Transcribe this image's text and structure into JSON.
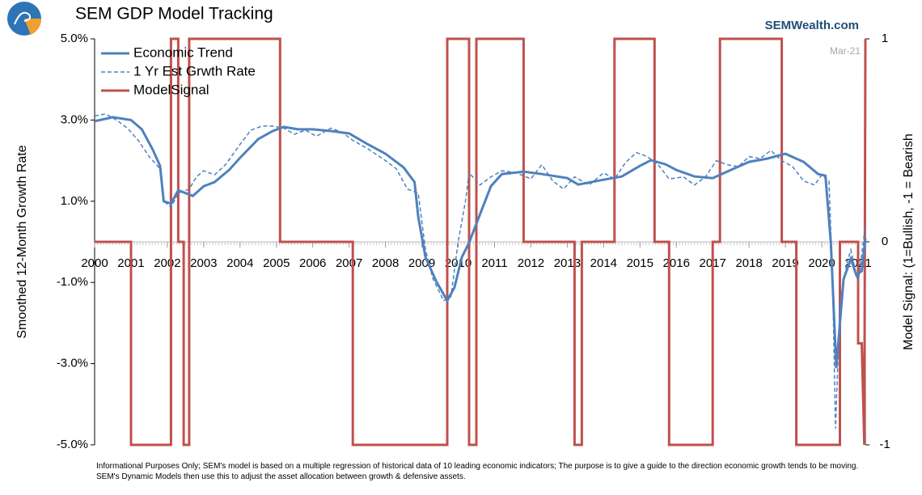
{
  "chart_data": {
    "type": "line",
    "title": "SEM GDP Model Tracking",
    "brand": "SEMWealth.com",
    "date_label": "Mar-21",
    "ylabel": "Smoothed 12-Month Growth Rate",
    "y2label": "Model Signal: (1=Bullish, -1 = Bearish",
    "note": "Informational Purposes Only; SEM's model is based on a multiple regression of historical data of 10 leading economic indicators; The purpose is to give a guide to the direction economic growth tends to be moving. SEM's Dynamic Models then use this to adjust the asset allocation between growth & defensive assets.",
    "xlim": [
      2000,
      2021.2
    ],
    "xticks": [
      2000,
      2001,
      2002,
      2003,
      2004,
      2005,
      2006,
      2007,
      2008,
      2009,
      2010,
      2011,
      2012,
      2013,
      2014,
      2015,
      2016,
      2017,
      2018,
      2019,
      2020,
      2021
    ],
    "ylim": [
      -5,
      5
    ],
    "yticks": [
      {
        "value": 5,
        "label": "5.0%"
      },
      {
        "value": 3,
        "label": "3.0%"
      },
      {
        "value": 1,
        "label": "1.0%"
      },
      {
        "value": -1,
        "label": "-1.0%"
      },
      {
        "value": -3,
        "label": "-3.0%"
      },
      {
        "value": -5,
        "label": "-5.0%"
      }
    ],
    "y2lim": [
      -1,
      1
    ],
    "y2ticks": [
      1,
      0,
      -1
    ],
    "legend": "upper left",
    "series": [
      {
        "name": "Economic Trend",
        "color": "#4f81bd",
        "style": "solid",
        "x": [
          2000.0,
          2000.5,
          2001.0,
          2001.3,
          2001.6,
          2001.8,
          2001.9,
          2002.1,
          2002.3,
          2002.7,
          2003.0,
          2003.3,
          2003.7,
          2004.0,
          2004.5,
          2004.9,
          2005.2,
          2005.6,
          2006.0,
          2006.5,
          2007.0,
          2007.5,
          2008.0,
          2008.5,
          2008.8,
          2008.9,
          2009.1,
          2009.4,
          2009.7,
          2009.9,
          2010.1,
          2010.3,
          2010.6,
          2010.9,
          2011.2,
          2011.8,
          2012.3,
          2013.0,
          2013.3,
          2014.0,
          2014.5,
          2015.0,
          2015.3,
          2015.7,
          2016.0,
          2016.5,
          2017.0,
          2017.5,
          2018.0,
          2018.5,
          2019.0,
          2019.5,
          2019.9,
          2020.1,
          2020.25,
          2020.4,
          2020.6,
          2020.8,
          2020.95,
          2021.1,
          2021.2
        ],
        "values": [
          2.97,
          3.07,
          3.0,
          2.77,
          2.27,
          1.87,
          1.0,
          0.94,
          1.27,
          1.13,
          1.37,
          1.47,
          1.77,
          2.07,
          2.53,
          2.73,
          2.83,
          2.77,
          2.77,
          2.73,
          2.67,
          2.41,
          2.17,
          1.83,
          1.47,
          0.62,
          -0.38,
          -0.98,
          -1.45,
          -1.12,
          -0.38,
          -0.02,
          0.68,
          1.37,
          1.67,
          1.73,
          1.67,
          1.57,
          1.41,
          1.53,
          1.61,
          1.87,
          2.01,
          1.91,
          1.77,
          1.61,
          1.57,
          1.77,
          1.97,
          2.05,
          2.17,
          1.97,
          1.67,
          1.63,
          -0.02,
          -3.11,
          -0.92,
          -0.42,
          -0.82,
          -0.72,
          0.08
        ]
      },
      {
        "name": "1 Yr Est Grwth Rate",
        "color": "#4f81bd",
        "style": "dashed",
        "x": [
          2000.0,
          2000.3,
          2000.6,
          2000.9,
          2001.2,
          2001.5,
          2001.8,
          2001.9,
          2002.1,
          2002.3,
          2002.6,
          2002.8,
          2003.0,
          2003.3,
          2003.6,
          2004.0,
          2004.3,
          2004.6,
          2004.9,
          2005.2,
          2005.5,
          2005.8,
          2006.1,
          2006.5,
          2006.8,
          2007.1,
          2007.5,
          2008.0,
          2008.3,
          2008.6,
          2008.9,
          2009.1,
          2009.3,
          2009.6,
          2009.8,
          2010.0,
          2010.2,
          2010.3,
          2010.6,
          2010.9,
          2011.2,
          2011.6,
          2012.0,
          2012.3,
          2012.6,
          2012.9,
          2013.2,
          2013.6,
          2014.0,
          2014.3,
          2014.6,
          2014.9,
          2015.2,
          2015.5,
          2015.8,
          2016.2,
          2016.5,
          2016.8,
          2017.1,
          2017.4,
          2017.7,
          2018.0,
          2018.3,
          2018.6,
          2018.9,
          2019.2,
          2019.5,
          2019.8,
          2020.0,
          2020.2,
          2020.3,
          2020.38,
          2020.5,
          2020.7,
          2020.8,
          2021.0,
          2021.2
        ],
        "values": [
          3.1,
          3.15,
          3.0,
          2.8,
          2.5,
          2.1,
          1.8,
          1.0,
          0.85,
          1.2,
          1.3,
          1.6,
          1.75,
          1.65,
          1.9,
          2.4,
          2.75,
          2.85,
          2.85,
          2.8,
          2.65,
          2.75,
          2.6,
          2.8,
          2.7,
          2.5,
          2.3,
          2.0,
          1.8,
          1.3,
          1.2,
          -0.2,
          -0.9,
          -1.45,
          -1.35,
          0.0,
          1.0,
          1.7,
          1.4,
          1.6,
          1.75,
          1.7,
          1.55,
          1.9,
          1.5,
          1.3,
          1.6,
          1.4,
          1.7,
          1.55,
          1.95,
          2.2,
          2.1,
          1.9,
          1.55,
          1.6,
          1.4,
          1.6,
          2.0,
          1.9,
          1.85,
          2.1,
          2.05,
          2.25,
          2.0,
          1.85,
          1.5,
          1.4,
          1.65,
          1.5,
          -1.0,
          -4.6,
          -1.5,
          -0.5,
          -0.2,
          -1.0,
          0.4
        ]
      },
      {
        "name": "ModelSignal",
        "color": "#c0504d",
        "style": "solid",
        "axis": "y2",
        "x": [
          2000.0,
          2001.0,
          2001.0,
          2002.1,
          2002.1,
          2002.3,
          2002.3,
          2002.45,
          2002.45,
          2002.6,
          2002.6,
          2002.75,
          2002.75,
          2005.1,
          2005.1,
          2007.1,
          2007.1,
          2009.7,
          2009.7,
          2010.3,
          2010.3,
          2010.5,
          2010.5,
          2011.8,
          2011.8,
          2013.2,
          2013.2,
          2013.4,
          2013.4,
          2014.3,
          2014.3,
          2015.4,
          2015.4,
          2015.8,
          2015.8,
          2017.0,
          2017.0,
          2017.2,
          2017.2,
          2018.9,
          2018.9,
          2019.3,
          2019.3,
          2020.5,
          2020.5,
          2021.0,
          2021.0,
          2021.1,
          2021.17,
          2021.2
        ],
        "values": [
          0,
          0,
          -1,
          -1,
          1,
          1,
          0,
          0,
          -1,
          -1,
          1,
          1,
          1,
          1,
          0,
          0,
          -1,
          -1,
          1,
          1,
          -1,
          -1,
          1,
          1,
          0,
          0,
          -1,
          -1,
          0,
          0,
          1,
          1,
          0,
          0,
          -1,
          -1,
          0,
          0,
          1,
          1,
          0,
          0,
          -1,
          -1,
          0,
          0,
          -0.5,
          -0.5,
          -1,
          1
        ]
      }
    ]
  }
}
